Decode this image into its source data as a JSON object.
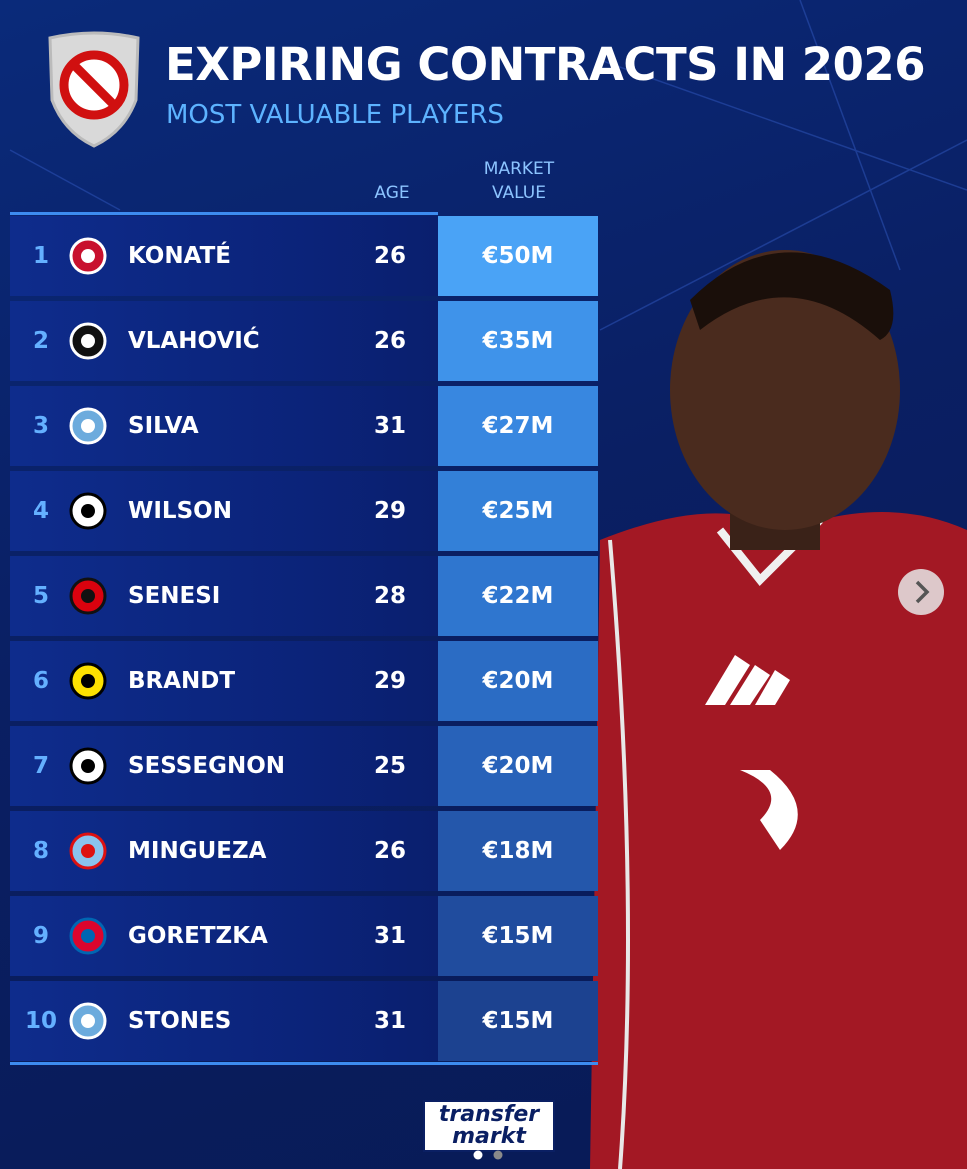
{
  "header": {
    "title": "EXPIRING CONTRACTS IN 2026",
    "subtitle": "MOST VALUABLE PLAYERS"
  },
  "table": {
    "columns": [
      "AGE",
      "MARKET VALUE"
    ],
    "rows": [
      [
        "1",
        "KONATÉ",
        "26",
        "€50M"
      ],
      [
        "2",
        "VLAHOVIĆ",
        "26",
        "€35M"
      ],
      [
        "3",
        "SILVA",
        "31",
        "€27M"
      ],
      [
        "4",
        "WILSON",
        "29",
        "€25M"
      ],
      [
        "5",
        "SENESI",
        "28",
        "€22M"
      ],
      [
        "6",
        "BRANDT",
        "29",
        "€20M"
      ],
      [
        "7",
        "SESSEGNON",
        "25",
        "€20M"
      ],
      [
        "8",
        "MINGUEZA",
        "26",
        "€18M"
      ],
      [
        "9",
        "GORETZKA",
        "31",
        "€15M"
      ],
      [
        "10",
        "STONES",
        "31",
        "€15M"
      ]
    ]
  },
  "footer": {
    "logo": [
      "transfer",
      "markt"
    ]
  }
}
